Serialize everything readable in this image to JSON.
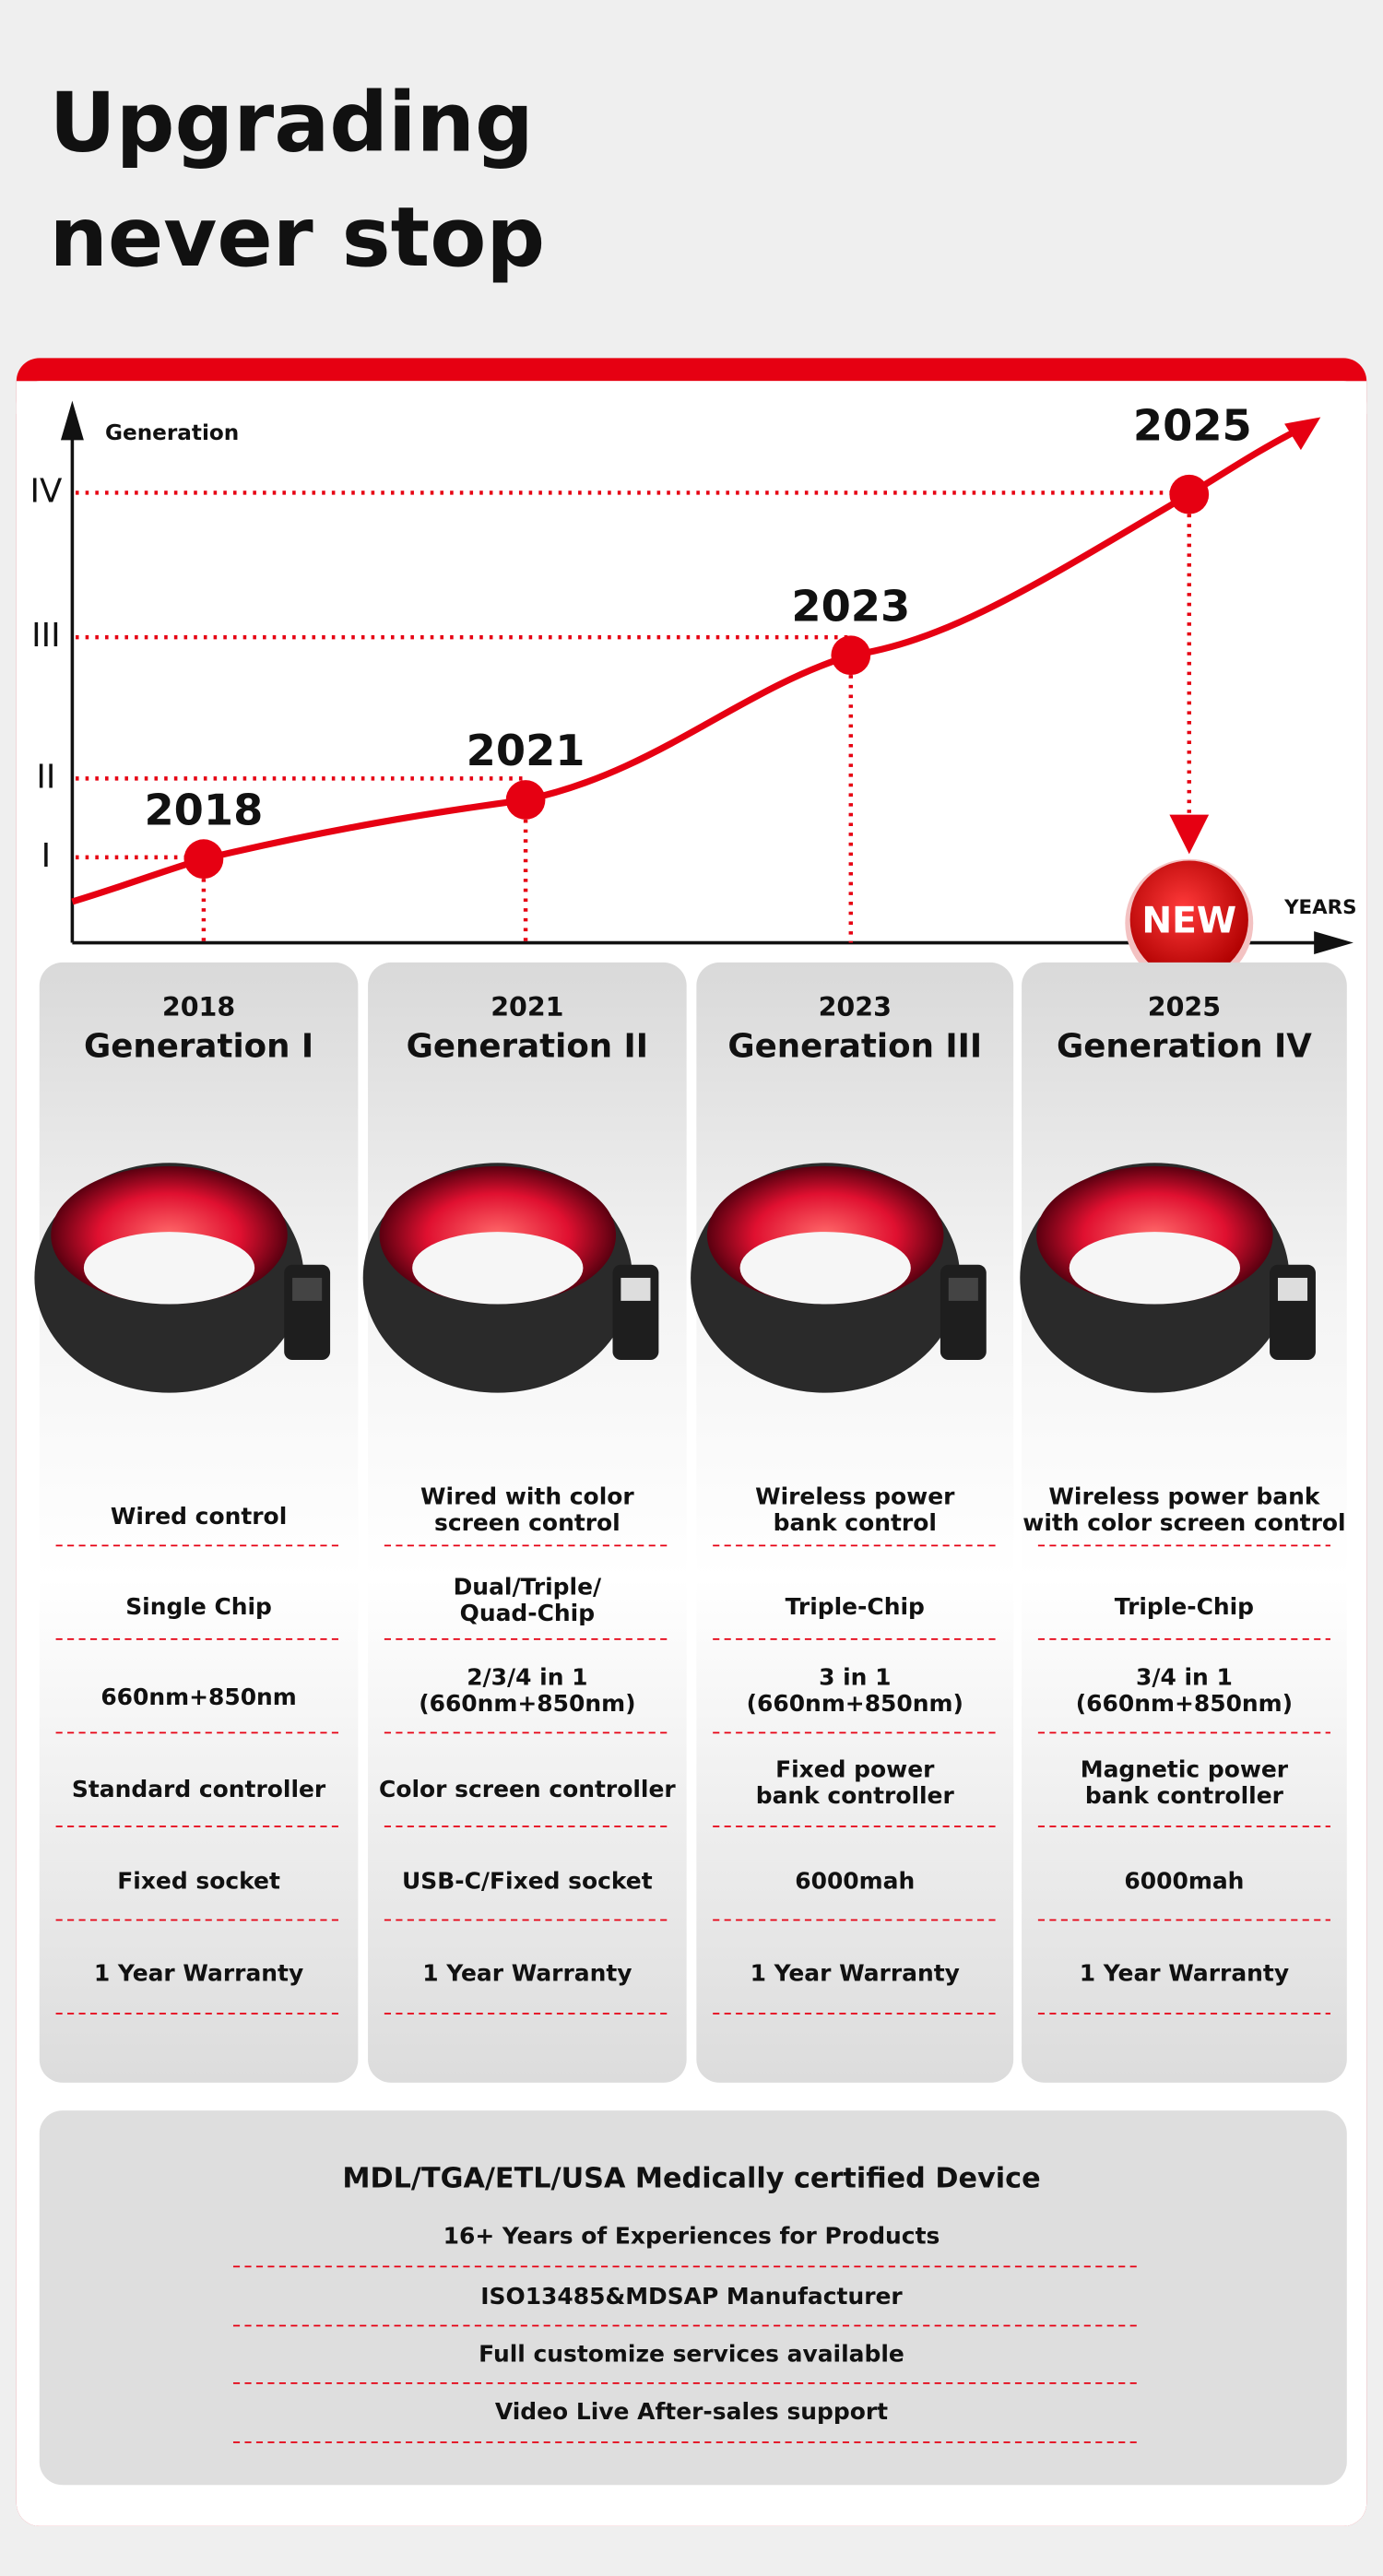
{
  "header": {
    "title": [
      "Upgrading",
      "never stop"
    ]
  },
  "timeline": {
    "y_axis_label": "Generation",
    "x_axis_label": "YEARS",
    "levels": [
      "IV",
      "III",
      "II",
      "I"
    ],
    "points": [
      "2018",
      "2021",
      "2023",
      "2025"
    ],
    "badge": "NEW"
  },
  "columns": [
    {
      "year": "2018",
      "name": "Generation I",
      "features": [
        [
          "Wired control"
        ],
        [
          "Single Chip"
        ],
        [
          "660nm+850nm"
        ],
        [
          "Standard controller"
        ],
        [
          "Fixed socket"
        ],
        [
          "1 Year Warranty"
        ]
      ]
    },
    {
      "year": "2021",
      "name": "Generation II",
      "features": [
        [
          "Wired with color",
          "screen control"
        ],
        [
          "Dual/Triple/",
          "Quad-Chip"
        ],
        [
          "2/3/4 in 1",
          "(660nm+850nm)"
        ],
        [
          "Color screen controller"
        ],
        [
          "USB-C/Fixed socket"
        ],
        [
          "1 Year Warranty"
        ]
      ]
    },
    {
      "year": "2023",
      "name": "Generation III",
      "features": [
        [
          "Wireless power",
          "bank control"
        ],
        [
          "Triple-Chip"
        ],
        [
          "3 in 1",
          "(660nm+850nm)"
        ],
        [
          "Fixed power",
          "bank controller"
        ],
        [
          "6000mah"
        ],
        [
          "1 Year Warranty"
        ]
      ]
    },
    {
      "year": "2025",
      "name": "Generation IV",
      "features": [
        [
          "Wireless power bank",
          "with color screen control"
        ],
        [
          "Triple-Chip"
        ],
        [
          "3/4 in 1",
          "(660nm+850nm)"
        ],
        [
          "Magnetic power",
          "bank controller"
        ],
        [
          "6000mah"
        ],
        [
          "1 Year Warranty"
        ]
      ]
    }
  ],
  "certification": {
    "heading": "MDL/TGA/ETL/USA Medically certified Device",
    "items": [
      "16+ Years of Experiences for Products",
      "ISO13485&MDSAP Manufacturer",
      "Full customize services available",
      "Video Live After-sales support"
    ]
  }
}
